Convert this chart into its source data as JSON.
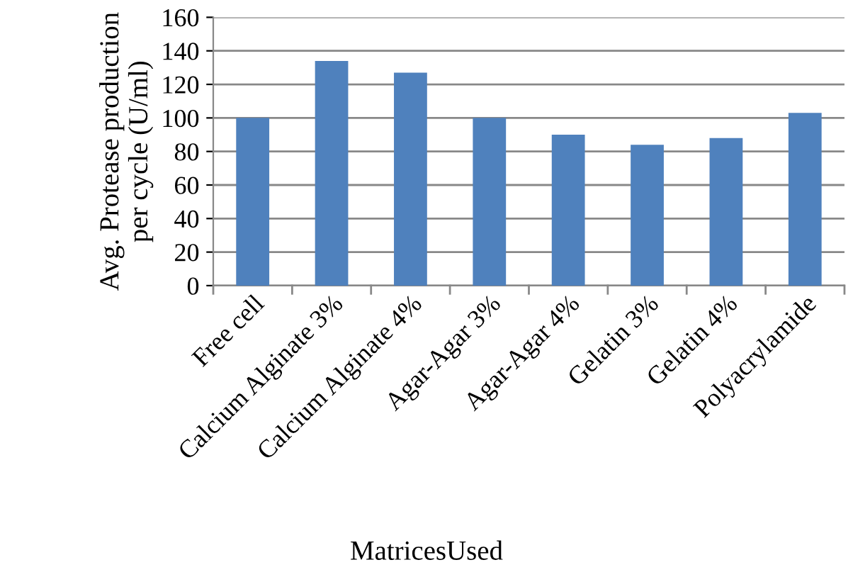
{
  "chart_data": {
    "type": "bar",
    "xlabel": "MatricesUsed",
    "ylabel": "Avg. Protease production\nper cycle (U/ml)",
    "categories": [
      "Free cell",
      "Calcium Alginate 3%",
      "Calcium Alginate 4%",
      "Agar-Agar 3%",
      "Agar-Agar 4%",
      "Gelatin 3%",
      "Gelatin 4%",
      "Polyacrylamide"
    ],
    "values": [
      100,
      134,
      127,
      100,
      90,
      84,
      88,
      103
    ],
    "color": "#4f81bd",
    "ylim": [
      0,
      160
    ],
    "yticks": [
      0,
      20,
      40,
      60,
      80,
      100,
      120,
      140,
      160
    ],
    "grid": "y",
    "legend": false
  }
}
